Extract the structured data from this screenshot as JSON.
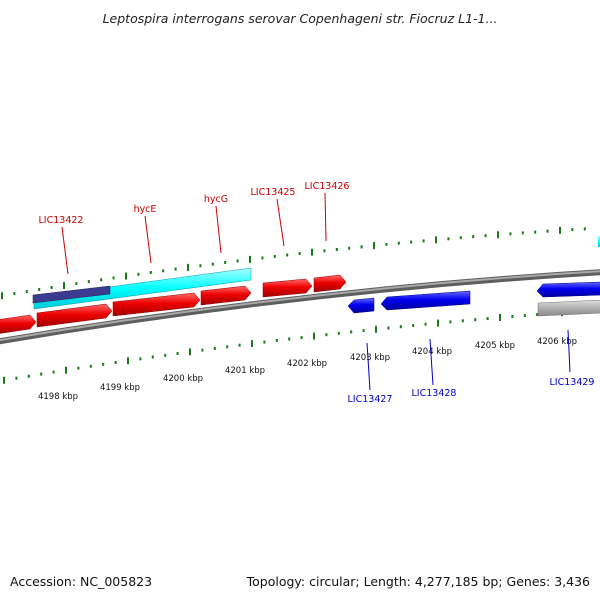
{
  "title": "Leptospira interrogans serovar Copenhageni str. Fiocruz L1-1...",
  "footer": {
    "accession": "Accession: NC_005823",
    "summary": "Topology: circular; Length: 4,277,185 bp; Genes: 3,436"
  },
  "scale_labels": [
    "4198 kbp",
    "4199 kbp",
    "4200 kbp",
    "4201 kbp",
    "4202 kbp",
    "4203 kbp",
    "4204 kbp",
    "4205 kbp",
    "4206 kbp"
  ],
  "gene_labels_forward": [
    "LIC13422",
    "hycE",
    "hycG",
    "LIC13425",
    "LIC13426"
  ],
  "gene_labels_reverse": [
    "LIC13427",
    "LIC13428",
    "LIC13429"
  ],
  "colors": {
    "forward_gene": "#ee0000",
    "reverse_gene": "#0000ee",
    "cds_feature": "#00ffff",
    "other_feature": "#3b3b8f",
    "pseudo_feature": "#b0b0b0",
    "backbone": "#7a7a7a",
    "tick": "#1a7a1a",
    "label_forward": "#cc0000",
    "label_reverse": "#0000cc"
  }
}
